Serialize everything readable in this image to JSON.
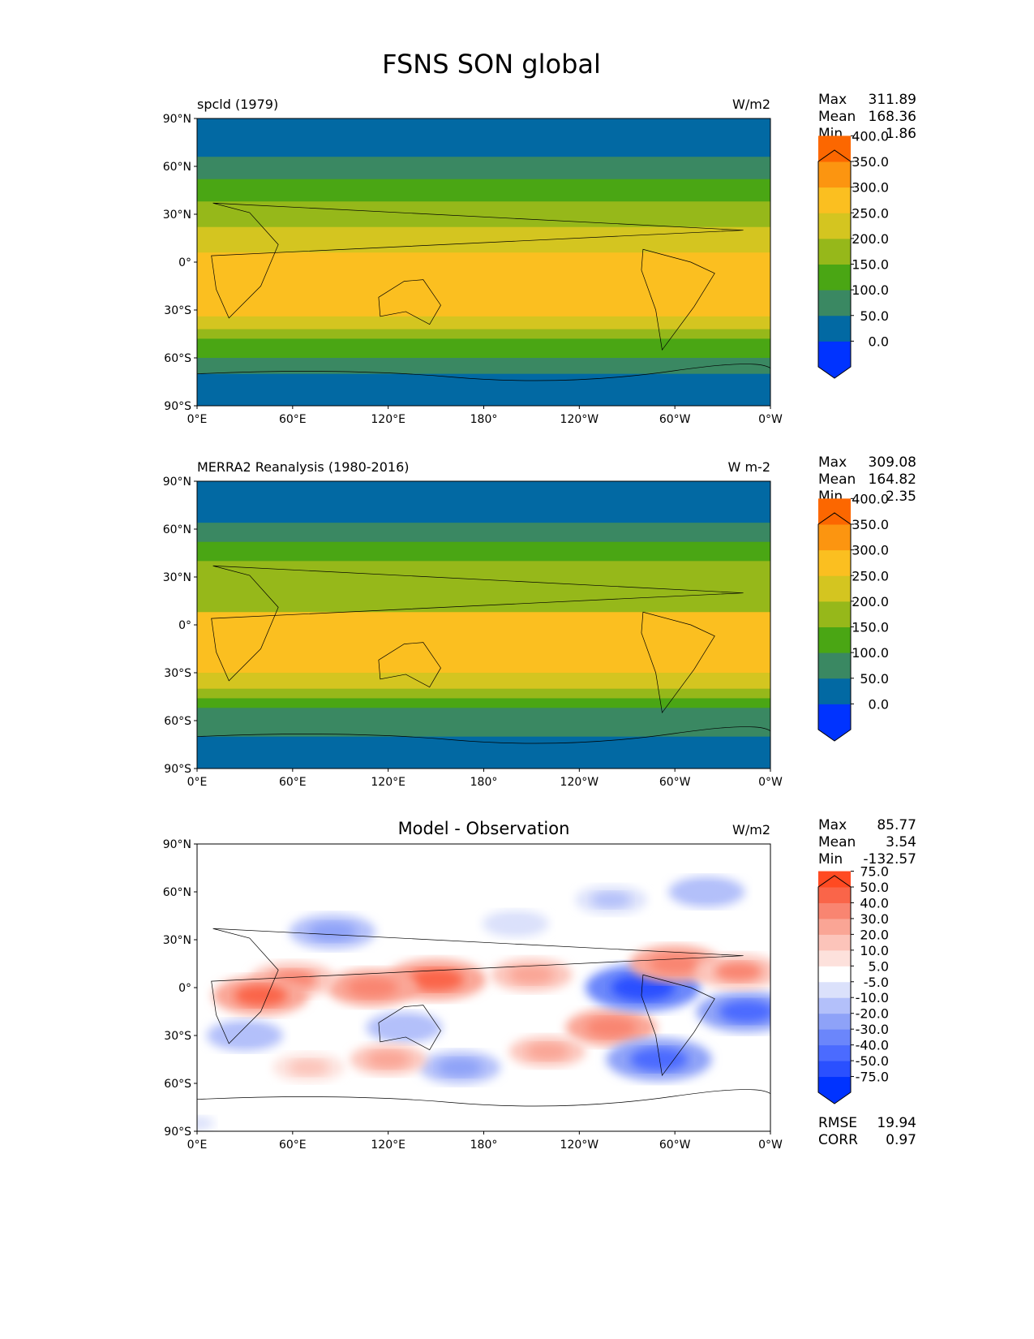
{
  "chart_data": {
    "type": "heatmap",
    "title": "FSNS SON global",
    "lat_ticks": [
      "90°N",
      "60°N",
      "30°N",
      "0°",
      "30°S",
      "60°S",
      "90°S"
    ],
    "lon_ticks": [
      "0°E",
      "60°E",
      "120°E",
      "180°",
      "120°W",
      "60°W",
      "0°W"
    ],
    "panels": [
      {
        "title": "spcld (1979)",
        "units": "W/m2",
        "title_centered": false,
        "stats": {
          "max_label": "Max",
          "max": "311.89",
          "mean_label": "Mean",
          "mean": "168.36",
          "min_label": "Min",
          "min": "1.86"
        },
        "colorbar": {
          "labels": [
            "0.0",
            "50.0",
            "100.0",
            "150.0",
            "200.0",
            "250.0",
            "300.0",
            "350.0",
            "400.0"
          ],
          "colors": [
            "#0033ff",
            "#0269a3",
            "#3a8862",
            "#4aa614",
            "#96b81a",
            "#d4c520",
            "#fbbf20",
            "#fc9510",
            "#fc6700",
            "#ff2a00"
          ]
        },
        "zonal_bands": [
          [
            90,
            66,
            25
          ],
          [
            66,
            52,
            75
          ],
          [
            52,
            38,
            125
          ],
          [
            38,
            22,
            175
          ],
          [
            22,
            6,
            225
          ],
          [
            6,
            -34,
            265
          ],
          [
            -34,
            -42,
            225
          ],
          [
            -42,
            -48,
            175
          ],
          [
            -48,
            -60,
            125
          ],
          [
            -60,
            -70,
            75
          ],
          [
            -70,
            -90,
            25
          ]
        ]
      },
      {
        "title": "MERRA2 Reanalysis (1980-2016)",
        "units": "W m-2",
        "title_centered": false,
        "stats": {
          "max_label": "Max",
          "max": "309.08",
          "mean_label": "Mean",
          "mean": "164.82",
          "min_label": "Min",
          "min": "2.35"
        },
        "colorbar": {
          "labels": [
            "0.0",
            "50.0",
            "100.0",
            "150.0",
            "200.0",
            "250.0",
            "300.0",
            "350.0",
            "400.0"
          ],
          "colors": [
            "#0033ff",
            "#0269a3",
            "#3a8862",
            "#4aa614",
            "#96b81a",
            "#d4c520",
            "#fbbf20",
            "#fc9510",
            "#fc6700",
            "#ff2a00"
          ]
        },
        "zonal_bands": [
          [
            90,
            64,
            25
          ],
          [
            64,
            52,
            75
          ],
          [
            52,
            40,
            125
          ],
          [
            40,
            22,
            175
          ],
          [
            22,
            8,
            175
          ],
          [
            8,
            -30,
            265
          ],
          [
            -30,
            -40,
            225
          ],
          [
            -40,
            -46,
            175
          ],
          [
            -46,
            -52,
            125
          ],
          [
            -52,
            -70,
            75
          ],
          [
            -70,
            -90,
            25
          ]
        ]
      },
      {
        "title": "Model - Observation",
        "units": "W/m2",
        "title_centered": true,
        "stats": {
          "max_label": "Max",
          "max": "85.77",
          "mean_label": "Mean",
          "mean": "3.54",
          "min_label": "Min",
          "min": "-132.57"
        },
        "extra_stats": {
          "rmse_label": "RMSE",
          "rmse": "19.94",
          "corr_label": "CORR",
          "corr": "0.97"
        },
        "colorbar": {
          "labels": [
            "-75.0",
            "-50.0",
            "-40.0",
            "-30.0",
            "-20.0",
            "-10.0",
            "-5.0",
            "5.0",
            "10.0",
            "20.0",
            "30.0",
            "40.0",
            "50.0",
            "75.0"
          ],
          "colors": [
            "#0033ff",
            "#2a50ff",
            "#4b6bff",
            "#6b86fb",
            "#8ea2f8",
            "#b3c0fa",
            "#dbe1fb",
            "#ffffff",
            "#fde1dc",
            "#fcc4ba",
            "#faa595",
            "#f98571",
            "#fa6549",
            "#ff4a22",
            "#ff2a00"
          ]
        },
        "zonal_bands": [
          [
            90,
            -90,
            0
          ]
        ],
        "anomalies": [
          [
            150,
            5,
            45
          ],
          [
            110,
            0,
            35
          ],
          [
            60,
            5,
            30
          ],
          [
            40,
            -5,
            40
          ],
          [
            -150,
            8,
            25
          ],
          [
            -100,
            -25,
            35
          ],
          [
            -80,
            0,
            -60
          ],
          [
            -15,
            -15,
            -45
          ],
          [
            -70,
            -45,
            -50
          ],
          [
            85,
            35,
            -30
          ],
          [
            30,
            -30,
            -20
          ],
          [
            130,
            -25,
            -20
          ],
          [
            165,
            -50,
            -25
          ],
          [
            -40,
            60,
            -20
          ],
          [
            -100,
            55,
            -15
          ],
          [
            -60,
            15,
            35
          ],
          [
            -20,
            10,
            30
          ],
          [
            120,
            -45,
            20
          ],
          [
            -140,
            -40,
            20
          ],
          [
            0,
            -85,
            -7
          ],
          [
            70,
            -50,
            15
          ],
          [
            -160,
            40,
            -10
          ]
        ]
      }
    ]
  }
}
